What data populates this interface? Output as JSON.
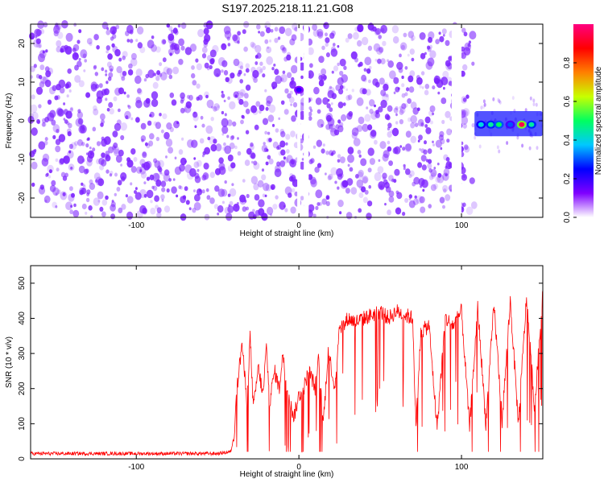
{
  "title": "S197.2025.218.11.21.G08",
  "colors": {
    "signal_line": "#ff0000",
    "speckle": "#7b1fff",
    "frame": "#000000",
    "colorbar_stops": [
      "#ffffff",
      "#7f00ff",
      "#0000ff",
      "#00c8ff",
      "#00ff60",
      "#c8ff00",
      "#ff8000",
      "#ff0000",
      "#ff0080"
    ]
  },
  "chart_data": [
    {
      "type": "heatmap",
      "xlabel": "Height of straight line (km)",
      "ylabel": "Frequency (Hz)",
      "xlim": [
        -165,
        150
      ],
      "ylim": [
        -25,
        25
      ],
      "xticks": [
        -100,
        0,
        100
      ],
      "yticks": [
        -20,
        -10,
        0,
        10,
        20
      ],
      "colorbar": {
        "label": "Normalized spectral amplitude",
        "range": [
          0,
          1
        ],
        "ticks": [
          "0.0",
          "0.2",
          "0.4",
          "0.6",
          "0.8"
        ]
      },
      "noise_region_x": [
        -165,
        108
      ],
      "gaps_x": [
        [
          -1,
          1
        ],
        [
          3,
          6
        ],
        [
          94,
          100
        ]
      ],
      "signal": [
        {
          "x": 0,
          "y": 8,
          "amplitude": 0.2
        },
        {
          "x": 112,
          "y": -1,
          "amplitude": 0.4
        },
        {
          "x": 118,
          "y": -1,
          "amplitude": 0.45
        },
        {
          "x": 123,
          "y": -1,
          "amplitude": 0.5
        },
        {
          "x": 130,
          "y": -1,
          "amplitude": 0.3
        },
        {
          "x": 137,
          "y": -1,
          "amplitude": 0.95
        },
        {
          "x": 143,
          "y": -1,
          "amplitude": 0.45
        }
      ]
    },
    {
      "type": "line",
      "xlabel": "Height of straight line (km)",
      "ylabel": "SNR (10 * v/v)",
      "xlim": [
        -165,
        150
      ],
      "ylim": [
        0,
        550
      ],
      "xticks": [
        -100,
        0,
        100
      ],
      "yticks": [
        0,
        100,
        200,
        300,
        400,
        500
      ],
      "series": [
        {
          "x": [
            -165,
            -150,
            -130,
            -110,
            -90,
            -70,
            -50,
            -42,
            -40,
            -38,
            -35,
            -32,
            -30,
            -28,
            -25,
            -22,
            -20,
            -18,
            -15,
            -12,
            -10,
            -8,
            -5,
            -3,
            0,
            3,
            6,
            8,
            10,
            12,
            15,
            18,
            20,
            22,
            25,
            28,
            30,
            35,
            40,
            45,
            50,
            55,
            60,
            65,
            70,
            72,
            75,
            80,
            85,
            90,
            95,
            100,
            105,
            110,
            115,
            120,
            125,
            130,
            135,
            140,
            145,
            150
          ],
          "y": [
            15,
            15,
            15,
            15,
            15,
            15,
            15,
            20,
            60,
            200,
            330,
            160,
            350,
            140,
            260,
            180,
            320,
            160,
            250,
            200,
            300,
            220,
            150,
            120,
            180,
            200,
            250,
            230,
            200,
            280,
            100,
            310,
            260,
            200,
            380,
            380,
            400,
            390,
            400,
            410,
            420,
            400,
            420,
            410,
            400,
            90,
            360,
            380,
            90,
            400,
            380,
            420,
            90,
            430,
            100,
            440,
            110,
            450,
            100,
            460,
            140,
            480
          ]
        }
      ]
    }
  ]
}
